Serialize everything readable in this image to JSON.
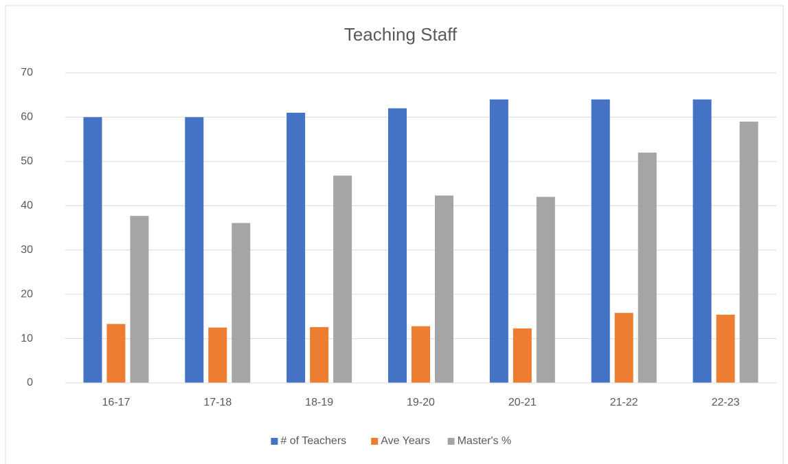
{
  "chart_data": {
    "type": "bar",
    "title": "Teaching Staff",
    "categories": [
      "16-17",
      "17-18",
      "18-19",
      "19-20",
      "20-21",
      "21-22",
      "22-23"
    ],
    "series": [
      {
        "name": "# of Teachers",
        "color": "#4472c4",
        "values": [
          60,
          60,
          61,
          62,
          64,
          64,
          64
        ]
      },
      {
        "name": "Ave Years",
        "color": "#ed7d31",
        "values": [
          13.3,
          12.5,
          12.6,
          12.8,
          12.3,
          15.8,
          15.4
        ]
      },
      {
        "name": "Master's %",
        "color": "#a5a5a5",
        "values": [
          37.7,
          36.1,
          46.8,
          42.3,
          42,
          52,
          59
        ]
      }
    ],
    "ylim": [
      0,
      70
    ],
    "yticks": [
      0,
      10,
      20,
      30,
      40,
      50,
      60,
      70
    ],
    "grid": true,
    "legend": "bottom"
  }
}
